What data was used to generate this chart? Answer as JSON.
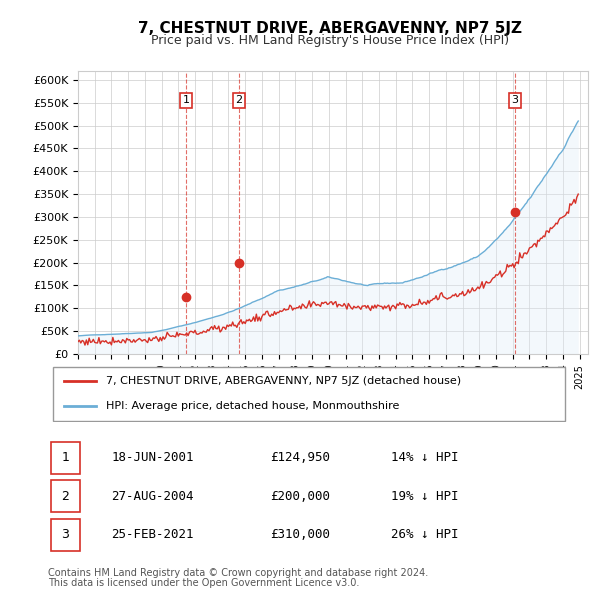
{
  "title": "7, CHESTNUT DRIVE, ABERGAVENNY, NP7 5JZ",
  "subtitle": "Price paid vs. HM Land Registry's House Price Index (HPI)",
  "ylabel": "",
  "xlabel": "",
  "ylim": [
    0,
    620000
  ],
  "yticks": [
    0,
    50000,
    100000,
    150000,
    200000,
    250000,
    300000,
    350000,
    400000,
    450000,
    500000,
    550000,
    600000
  ],
  "ytick_labels": [
    "£0",
    "£50K",
    "£100K",
    "£150K",
    "£200K",
    "£250K",
    "£300K",
    "£350K",
    "£400K",
    "£450K",
    "£500K",
    "£550K",
    "£600K"
  ],
  "line_color_hpi": "#6baed6",
  "line_color_price": "#d73027",
  "fill_color_hpi": "#deebf7",
  "sale_dates": [
    "2001-06-18",
    "2004-08-27",
    "2021-02-25"
  ],
  "sale_prices": [
    124950,
    200000,
    310000
  ],
  "sale_labels": [
    "1",
    "2",
    "3"
  ],
  "legend_label_price": "7, CHESTNUT DRIVE, ABERGAVENNY, NP7 5JZ (detached house)",
  "legend_label_hpi": "HPI: Average price, detached house, Monmouthshire",
  "table_entries": [
    {
      "num": "1",
      "date": "18-JUN-2001",
      "price": "£124,950",
      "hpi": "14% ↓ HPI"
    },
    {
      "num": "2",
      "date": "27-AUG-2004",
      "price": "£200,000",
      "hpi": "19% ↓ HPI"
    },
    {
      "num": "3",
      "date": "25-FEB-2021",
      "price": "£310,000",
      "hpi": "26% ↓ HPI"
    }
  ],
  "footnote1": "Contains HM Land Registry data © Crown copyright and database right 2024.",
  "footnote2": "This data is licensed under the Open Government Licence v3.0.",
  "xstart_year": 1995,
  "xend_year": 2025
}
